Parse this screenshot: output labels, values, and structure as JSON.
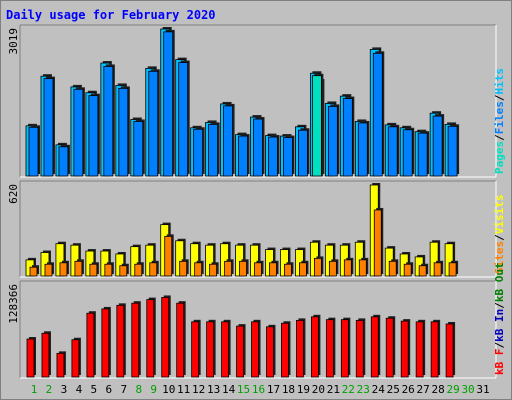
{
  "title": "Daily usage for February 2020",
  "colors": {
    "background": "#c0c0c0",
    "hits": "#00c0ff",
    "files": "#0080ff",
    "pages": "#00e0c0",
    "visits": "#ffff00",
    "sites": "#ff8000",
    "kbin": "#0000c0",
    "kbout": "#008000",
    "kbf": "#ff0000",
    "weekend_label": "#00a000",
    "weekday_label": "#000000"
  },
  "chart_data": [
    {
      "type": "bar",
      "panel": "hits_files_pages",
      "ymax_label": "3019",
      "ylim": [
        0,
        3019
      ],
      "legend": [
        "Pages",
        "/",
        "Files",
        "/",
        "Hits"
      ],
      "categories": [
        "1",
        "2",
        "3",
        "4",
        "5",
        "6",
        "7",
        "8",
        "9",
        "10",
        "11",
        "12",
        "13",
        "14",
        "15",
        "16",
        "17",
        "18",
        "19",
        "20",
        "21",
        "22",
        "23",
        "24",
        "25",
        "26",
        "27",
        "28",
        "29",
        "30",
        "31"
      ],
      "series": [
        {
          "name": "Hits",
          "values": [
            1030,
            2050,
            640,
            1830,
            1710,
            2320,
            1860,
            1160,
            2210,
            3019,
            2390,
            990,
            1100,
            1480,
            850,
            1210,
            830,
            820,
            1010,
            2110,
            1490,
            1640,
            1120,
            2600,
            1050,
            990,
            910,
            1290,
            1060,
            0,
            0
          ]
        },
        {
          "name": "Files",
          "values": [
            1000,
            2000,
            600,
            1780,
            1650,
            2250,
            1800,
            1120,
            2150,
            2960,
            2330,
            960,
            1060,
            1440,
            820,
            1170,
            800,
            790,
            940,
            1950,
            1430,
            1590,
            1090,
            2520,
            1010,
            950,
            880,
            1230,
            1020,
            0,
            0
          ]
        },
        {
          "name": "Pages",
          "values": [
            0,
            0,
            0,
            0,
            0,
            0,
            0,
            0,
            0,
            0,
            0,
            0,
            0,
            0,
            0,
            0,
            0,
            0,
            0,
            2060,
            0,
            0,
            0,
            0,
            0,
            0,
            0,
            0,
            0,
            0,
            0
          ]
        }
      ]
    },
    {
      "type": "bar",
      "panel": "visits_sites",
      "ymax_label": "620",
      "ylim": [
        0,
        620
      ],
      "legend": [
        "Sites",
        "/",
        "Visits"
      ],
      "categories": [
        "1",
        "2",
        "3",
        "4",
        "5",
        "6",
        "7",
        "8",
        "9",
        "10",
        "11",
        "12",
        "13",
        "14",
        "15",
        "16",
        "17",
        "18",
        "19",
        "20",
        "21",
        "22",
        "23",
        "24",
        "25",
        "26",
        "27",
        "28",
        "29",
        "30",
        "31"
      ],
      "series": [
        {
          "name": "Visits",
          "values": [
            110,
            160,
            220,
            210,
            170,
            170,
            150,
            200,
            210,
            350,
            240,
            220,
            210,
            220,
            210,
            210,
            180,
            180,
            180,
            230,
            210,
            210,
            230,
            620,
            190,
            150,
            130,
            230,
            220,
            0,
            0
          ]
        },
        {
          "name": "Sites",
          "values": [
            60,
            80,
            90,
            100,
            80,
            80,
            70,
            80,
            90,
            270,
            100,
            90,
            80,
            100,
            100,
            90,
            90,
            80,
            90,
            120,
            100,
            110,
            110,
            450,
            100,
            80,
            70,
            90,
            90,
            0,
            0
          ]
        }
      ]
    },
    {
      "type": "bar",
      "panel": "kbf_kbin_kbout",
      "ymax_label": "128366",
      "ylim": [
        0,
        128366
      ],
      "legend": [
        "kB F",
        "/",
        "kB In",
        "/",
        "kB Out"
      ],
      "categories": [
        "1",
        "2",
        "3",
        "4",
        "5",
        "6",
        "7",
        "8",
        "9",
        "10",
        "11",
        "12",
        "13",
        "14",
        "15",
        "16",
        "17",
        "18",
        "19",
        "20",
        "21",
        "22",
        "23",
        "24",
        "25",
        "26",
        "27",
        "28",
        "29",
        "30",
        "31"
      ],
      "series": [
        {
          "name": "kB F",
          "values": [
            53000,
            61000,
            33000,
            52000,
            89000,
            95000,
            100000,
            103000,
            108000,
            111000,
            103000,
            77000,
            77000,
            77000,
            71000,
            77000,
            70000,
            75000,
            79000,
            84000,
            80000,
            80000,
            79000,
            84000,
            82000,
            78000,
            77000,
            77000,
            74000,
            0,
            0
          ]
        }
      ]
    }
  ],
  "weekend_days": [
    1,
    2,
    8,
    9,
    15,
    16,
    22,
    23,
    29,
    30
  ]
}
